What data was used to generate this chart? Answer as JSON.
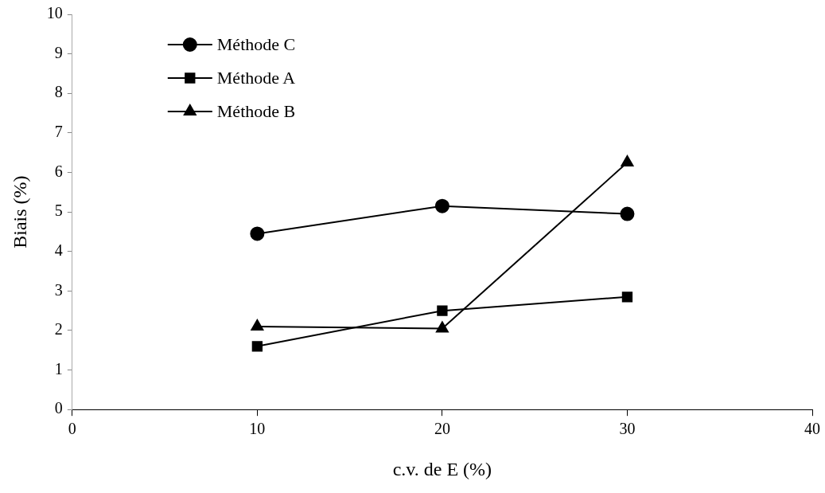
{
  "chart_data": {
    "type": "line",
    "xlabel": "c.v. de E (%)",
    "ylabel": "Biais (%)",
    "x": [
      10,
      20,
      30
    ],
    "series": [
      {
        "name": "Méthode C",
        "color": "#000000",
        "marker": "circle",
        "values": [
          4.45,
          5.15,
          4.95
        ]
      },
      {
        "name": "Méthode A",
        "color": "#000000",
        "marker": "square",
        "values": [
          1.6,
          2.5,
          2.85
        ]
      },
      {
        "name": "Méthode B",
        "color": "#000000",
        "marker": "triangle",
        "values": [
          2.1,
          2.05,
          6.25
        ]
      }
    ],
    "xlim": [
      0,
      40
    ],
    "xticks": [
      0,
      10,
      20,
      30,
      40
    ],
    "ylim": [
      0,
      10
    ],
    "yticks": [
      0,
      1,
      2,
      3,
      4,
      5,
      6,
      7,
      8,
      9,
      10
    ],
    "grid": false,
    "legend": "top left",
    "line_style": "solid"
  }
}
